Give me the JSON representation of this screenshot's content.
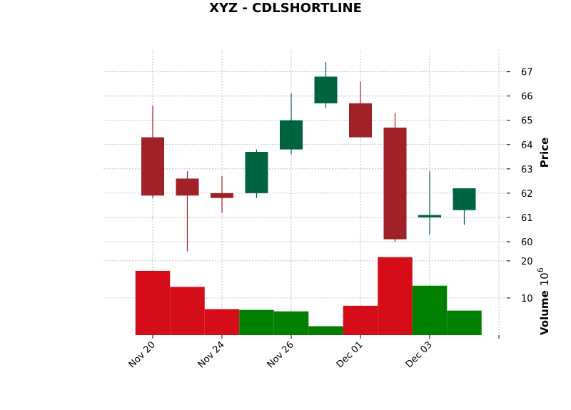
{
  "chart_data": {
    "type": "candlestick",
    "title": "XYZ - CDLSHORTLINE",
    "price_axis": {
      "label": "Price",
      "ylim": [
        59.5,
        67.9
      ],
      "ticks": [
        60,
        61,
        62,
        63,
        64,
        65,
        66,
        67
      ]
    },
    "volume_axis": {
      "label": "Volume",
      "multiplier_label": "10",
      "multiplier_exponent": "6",
      "ylim": [
        0,
        21.5
      ],
      "ticks": [
        10,
        20
      ]
    },
    "x_tick_labels": [
      {
        "index": 0,
        "label": "Nov 20"
      },
      {
        "index": 2,
        "label": "Nov 24"
      },
      {
        "index": 4,
        "label": "Nov 26"
      },
      {
        "index": 6,
        "label": "Dec 01"
      },
      {
        "index": 8,
        "label": "Dec 03"
      },
      {
        "index": 10,
        "label": ""
      }
    ],
    "candles": [
      {
        "open": 64.3,
        "high": 65.6,
        "low": 61.8,
        "close": 61.9,
        "volume": 17.3
      },
      {
        "open": 62.6,
        "high": 62.9,
        "low": 59.6,
        "close": 61.9,
        "volume": 13.0
      },
      {
        "open": 62.0,
        "high": 62.7,
        "low": 61.2,
        "close": 61.8,
        "volume": 7.0
      },
      {
        "open": 62.0,
        "high": 63.8,
        "low": 61.8,
        "close": 63.7,
        "volume": 6.8
      },
      {
        "open": 63.8,
        "high": 66.1,
        "low": 63.6,
        "close": 65.0,
        "volume": 6.4
      },
      {
        "open": 65.7,
        "high": 67.4,
        "low": 65.5,
        "close": 66.8,
        "volume": 2.4
      },
      {
        "open": 65.7,
        "high": 66.6,
        "low": 64.3,
        "close": 64.3,
        "volume": 7.9
      },
      {
        "open": 64.7,
        "high": 65.3,
        "low": 60.0,
        "close": 60.1,
        "volume": 21.0
      },
      {
        "open": 61.0,
        "high": 62.9,
        "low": 60.3,
        "close": 61.1,
        "volume": 13.3
      },
      {
        "open": 61.3,
        "high": 62.2,
        "low": 60.7,
        "close": 62.2,
        "volume": 6.6
      }
    ],
    "colors": {
      "up_candle": "#006340",
      "down_candle": "#a02128",
      "up_volume": "#007f00",
      "down_volume": "#d50d18",
      "grid": "#b0b0b0"
    },
    "grid": true
  }
}
